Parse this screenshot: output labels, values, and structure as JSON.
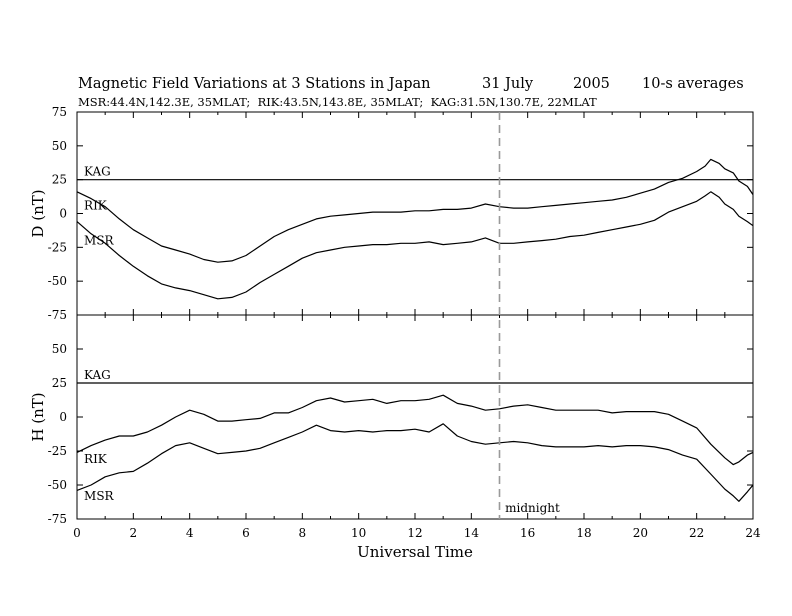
{
  "header": {
    "title": "Magnetic Field Variations at 3 Stations in Japan",
    "date": "31 July",
    "year": "2005",
    "averaging": "10-s averages",
    "stations_line": "MSR:44.4N,142.3E, 35MLAT;  RIK:43.5N,143.8E, 35MLAT;  KAG:31.5N,130.7E, 22MLAT"
  },
  "chart_data": [
    {
      "type": "line",
      "panel": "D",
      "ylabel": "D (nT)",
      "xlabel": "",
      "xlim": [
        0,
        24
      ],
      "ylim": [
        -75,
        75
      ],
      "yticks": [
        75,
        50,
        25,
        0,
        -25,
        -50,
        -75
      ],
      "xticks": [
        0,
        2,
        4,
        6,
        8,
        10,
        12,
        14,
        16,
        18,
        20,
        22,
        24
      ],
      "annotations": [
        {
          "text": "KAG",
          "x": 0.25,
          "y": 28
        },
        {
          "text": "RIK",
          "x": 0.25,
          "y": 3
        },
        {
          "text": "MSR",
          "x": 0.25,
          "y": -23
        }
      ],
      "series": [
        {
          "name": "KAG",
          "x": [
            0,
            24
          ],
          "values": [
            25,
            25
          ]
        },
        {
          "name": "RIK",
          "x": [
            0,
            0.5,
            1,
            1.5,
            2,
            2.5,
            3,
            3.5,
            4,
            4.5,
            5,
            5.5,
            6,
            6.5,
            7,
            7.5,
            8,
            8.5,
            9,
            9.5,
            10,
            10.5,
            11,
            11.5,
            12,
            12.5,
            13,
            13.5,
            14,
            14.5,
            15,
            15.5,
            16,
            16.5,
            17,
            17.5,
            18,
            18.5,
            19,
            19.5,
            20,
            20.5,
            21,
            21.5,
            22,
            22.3,
            22.5,
            22.8,
            23,
            23.3,
            23.5,
            23.8,
            24
          ],
          "values": [
            16,
            11,
            5,
            -4,
            -12,
            -18,
            -24,
            -27,
            -30,
            -34,
            -36,
            -35,
            -31,
            -24,
            -17,
            -12,
            -8,
            -4,
            -2,
            -1,
            0,
            1,
            1,
            1,
            2,
            2,
            3,
            3,
            4,
            7,
            5,
            4,
            4,
            5,
            6,
            7,
            8,
            9,
            10,
            12,
            15,
            18,
            23,
            26,
            31,
            35,
            40,
            37,
            33,
            30,
            24,
            20,
            14
          ]
        },
        {
          "name": "MSR",
          "x": [
            0,
            0.5,
            1,
            1.5,
            2,
            2.5,
            3,
            3.5,
            4,
            4.5,
            5,
            5.5,
            6,
            6.5,
            7,
            7.5,
            8,
            8.5,
            9,
            9.5,
            10,
            10.5,
            11,
            11.5,
            12,
            12.5,
            13,
            13.5,
            14,
            14.5,
            15,
            15.5,
            16,
            16.5,
            17,
            17.5,
            18,
            18.5,
            19,
            19.5,
            20,
            20.5,
            21,
            21.5,
            22,
            22.3,
            22.5,
            22.8,
            23,
            23.3,
            23.5,
            23.8,
            24
          ],
          "values": [
            -6,
            -15,
            -22,
            -31,
            -39,
            -46,
            -52,
            -55,
            -57,
            -60,
            -63,
            -62,
            -58,
            -51,
            -45,
            -39,
            -33,
            -29,
            -27,
            -25,
            -24,
            -23,
            -23,
            -22,
            -22,
            -21,
            -23,
            -22,
            -21,
            -18,
            -22,
            -22,
            -21,
            -20,
            -19,
            -17,
            -16,
            -14,
            -12,
            -10,
            -8,
            -5,
            1,
            5,
            9,
            13,
            16,
            12,
            7,
            3,
            -2,
            -6,
            -9
          ]
        }
      ]
    },
    {
      "type": "line",
      "panel": "H",
      "ylabel": "H (nT)",
      "xlabel": "Universal Time",
      "xlim": [
        0,
        24
      ],
      "ylim": [
        -75,
        75
      ],
      "yticks": [
        75,
        50,
        25,
        0,
        -25,
        -50,
        -75
      ],
      "xticks": [
        0,
        2,
        4,
        6,
        8,
        10,
        12,
        14,
        16,
        18,
        20,
        22,
        24
      ],
      "annotations": [
        {
          "text": "KAG",
          "x": 0.25,
          "y": 28
        },
        {
          "text": "RIK",
          "x": 0.25,
          "y": -34
        },
        {
          "text": "MSR",
          "x": 0.25,
          "y": -61
        },
        {
          "text": "midnight",
          "x": 15.2,
          "y": -70
        }
      ],
      "marker_line": {
        "x": 15,
        "label": "midnight"
      },
      "series": [
        {
          "name": "KAG",
          "x": [
            0,
            24
          ],
          "values": [
            25,
            25
          ]
        },
        {
          "name": "RIK",
          "x": [
            0,
            0.5,
            1,
            1.5,
            2,
            2.5,
            3,
            3.5,
            4,
            4.5,
            5,
            5.5,
            6,
            6.5,
            7,
            7.5,
            8,
            8.5,
            9,
            9.5,
            10,
            10.5,
            11,
            11.5,
            12,
            12.5,
            13,
            13.5,
            14,
            14.5,
            15,
            15.5,
            16,
            16.5,
            17,
            17.5,
            18,
            18.5,
            19,
            19.5,
            20,
            20.5,
            21,
            21.5,
            22,
            22.5,
            23,
            23.3,
            23.5,
            23.8,
            24
          ],
          "values": [
            -26,
            -21,
            -17,
            -14,
            -14,
            -11,
            -6,
            0,
            5,
            2,
            -3,
            -3,
            -2,
            -1,
            3,
            3,
            7,
            12,
            14,
            11,
            12,
            13,
            10,
            12,
            12,
            13,
            16,
            10,
            8,
            5,
            6,
            8,
            9,
            7,
            5,
            5,
            5,
            5,
            3,
            4,
            4,
            4,
            2,
            -3,
            -8,
            -20,
            -30,
            -35,
            -33,
            -28,
            -26
          ]
        },
        {
          "name": "MSR",
          "x": [
            0,
            0.5,
            1,
            1.5,
            2,
            2.5,
            3,
            3.5,
            4,
            4.5,
            5,
            5.5,
            6,
            6.5,
            7,
            7.5,
            8,
            8.5,
            9,
            9.5,
            10,
            10.5,
            11,
            11.5,
            12,
            12.5,
            13,
            13.5,
            14,
            14.5,
            15,
            15.5,
            16,
            16.5,
            17,
            17.5,
            18,
            18.5,
            19,
            19.5,
            20,
            20.5,
            21,
            21.5,
            22,
            22.5,
            23,
            23.3,
            23.5,
            23.8,
            24
          ],
          "values": [
            -54,
            -50,
            -44,
            -41,
            -40,
            -34,
            -27,
            -21,
            -19,
            -23,
            -27,
            -26,
            -25,
            -23,
            -19,
            -15,
            -11,
            -6,
            -10,
            -11,
            -10,
            -11,
            -10,
            -10,
            -9,
            -11,
            -5,
            -14,
            -18,
            -20,
            -19,
            -18,
            -19,
            -21,
            -22,
            -22,
            -22,
            -21,
            -22,
            -21,
            -21,
            -22,
            -24,
            -28,
            -31,
            -42,
            -53,
            -58,
            -62,
            -55,
            -50
          ]
        }
      ]
    }
  ]
}
